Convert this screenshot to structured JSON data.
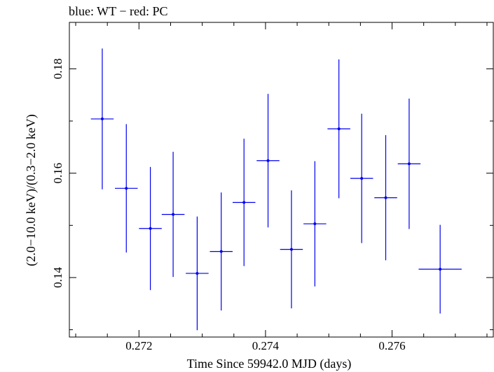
{
  "chart_data": {
    "type": "scatter",
    "title": "blue: WT − red: PC",
    "xlabel": "Time Since 59942.0 MJD (days)",
    "ylabel": "(2.0−10.0 keV)/(0.3−2.0 keV)",
    "xlim": [
      0.2709,
      0.2776
    ],
    "ylim": [
      0.1286,
      0.1889
    ],
    "x_ticks": [
      {
        "value": 0.272,
        "label": "0.272"
      },
      {
        "value": 0.274,
        "label": "0.274"
      },
      {
        "value": 0.276,
        "label": "0.276"
      }
    ],
    "y_ticks": [
      {
        "value": 0.14,
        "label": "0.14"
      },
      {
        "value": 0.16,
        "label": "0.16"
      },
      {
        "value": 0.18,
        "label": "0.18"
      }
    ],
    "grid": false,
    "series": [
      {
        "color": "#0000ee",
        "points": [
          {
            "x": 0.27142,
            "y": 0.1704,
            "xerr": 0.00018,
            "yerr_lo": 0.0135,
            "yerr_hi": 0.0135
          },
          {
            "x": 0.2718,
            "y": 0.1571,
            "xerr": 0.00018,
            "yerr_lo": 0.0123,
            "yerr_hi": 0.0123
          },
          {
            "x": 0.27218,
            "y": 0.1494,
            "xerr": 0.00018,
            "yerr_lo": 0.0118,
            "yerr_hi": 0.0118
          },
          {
            "x": 0.27254,
            "y": 0.1521,
            "xerr": 0.00018,
            "yerr_lo": 0.012,
            "yerr_hi": 0.012
          },
          {
            "x": 0.27292,
            "y": 0.1408,
            "xerr": 0.00018,
            "yerr_lo": 0.0109,
            "yerr_hi": 0.0109
          },
          {
            "x": 0.2733,
            "y": 0.145,
            "xerr": 0.00018,
            "yerr_lo": 0.0113,
            "yerr_hi": 0.0113
          },
          {
            "x": 0.27366,
            "y": 0.1544,
            "xerr": 0.00018,
            "yerr_lo": 0.0122,
            "yerr_hi": 0.0122
          },
          {
            "x": 0.27404,
            "y": 0.1624,
            "xerr": 0.00018,
            "yerr_lo": 0.0128,
            "yerr_hi": 0.0128
          },
          {
            "x": 0.27441,
            "y": 0.1454,
            "xerr": 0.00018,
            "yerr_lo": 0.0113,
            "yerr_hi": 0.0113
          },
          {
            "x": 0.27478,
            "y": 0.1503,
            "xerr": 0.00018,
            "yerr_lo": 0.012,
            "yerr_hi": 0.012
          },
          {
            "x": 0.27516,
            "y": 0.1685,
            "xerr": 0.00018,
            "yerr_lo": 0.0133,
            "yerr_hi": 0.0133
          },
          {
            "x": 0.27552,
            "y": 0.159,
            "xerr": 0.00018,
            "yerr_lo": 0.0124,
            "yerr_hi": 0.0124
          },
          {
            "x": 0.2759,
            "y": 0.1553,
            "xerr": 0.00018,
            "yerr_lo": 0.012,
            "yerr_hi": 0.012
          },
          {
            "x": 0.27627,
            "y": 0.1618,
            "xerr": 0.00018,
            "yerr_lo": 0.0125,
            "yerr_hi": 0.0125
          },
          {
            "x": 0.27676,
            "y": 0.1416,
            "xerr": 0.00034,
            "yerr_lo": 0.0085,
            "yerr_hi": 0.0085
          }
        ]
      }
    ]
  }
}
